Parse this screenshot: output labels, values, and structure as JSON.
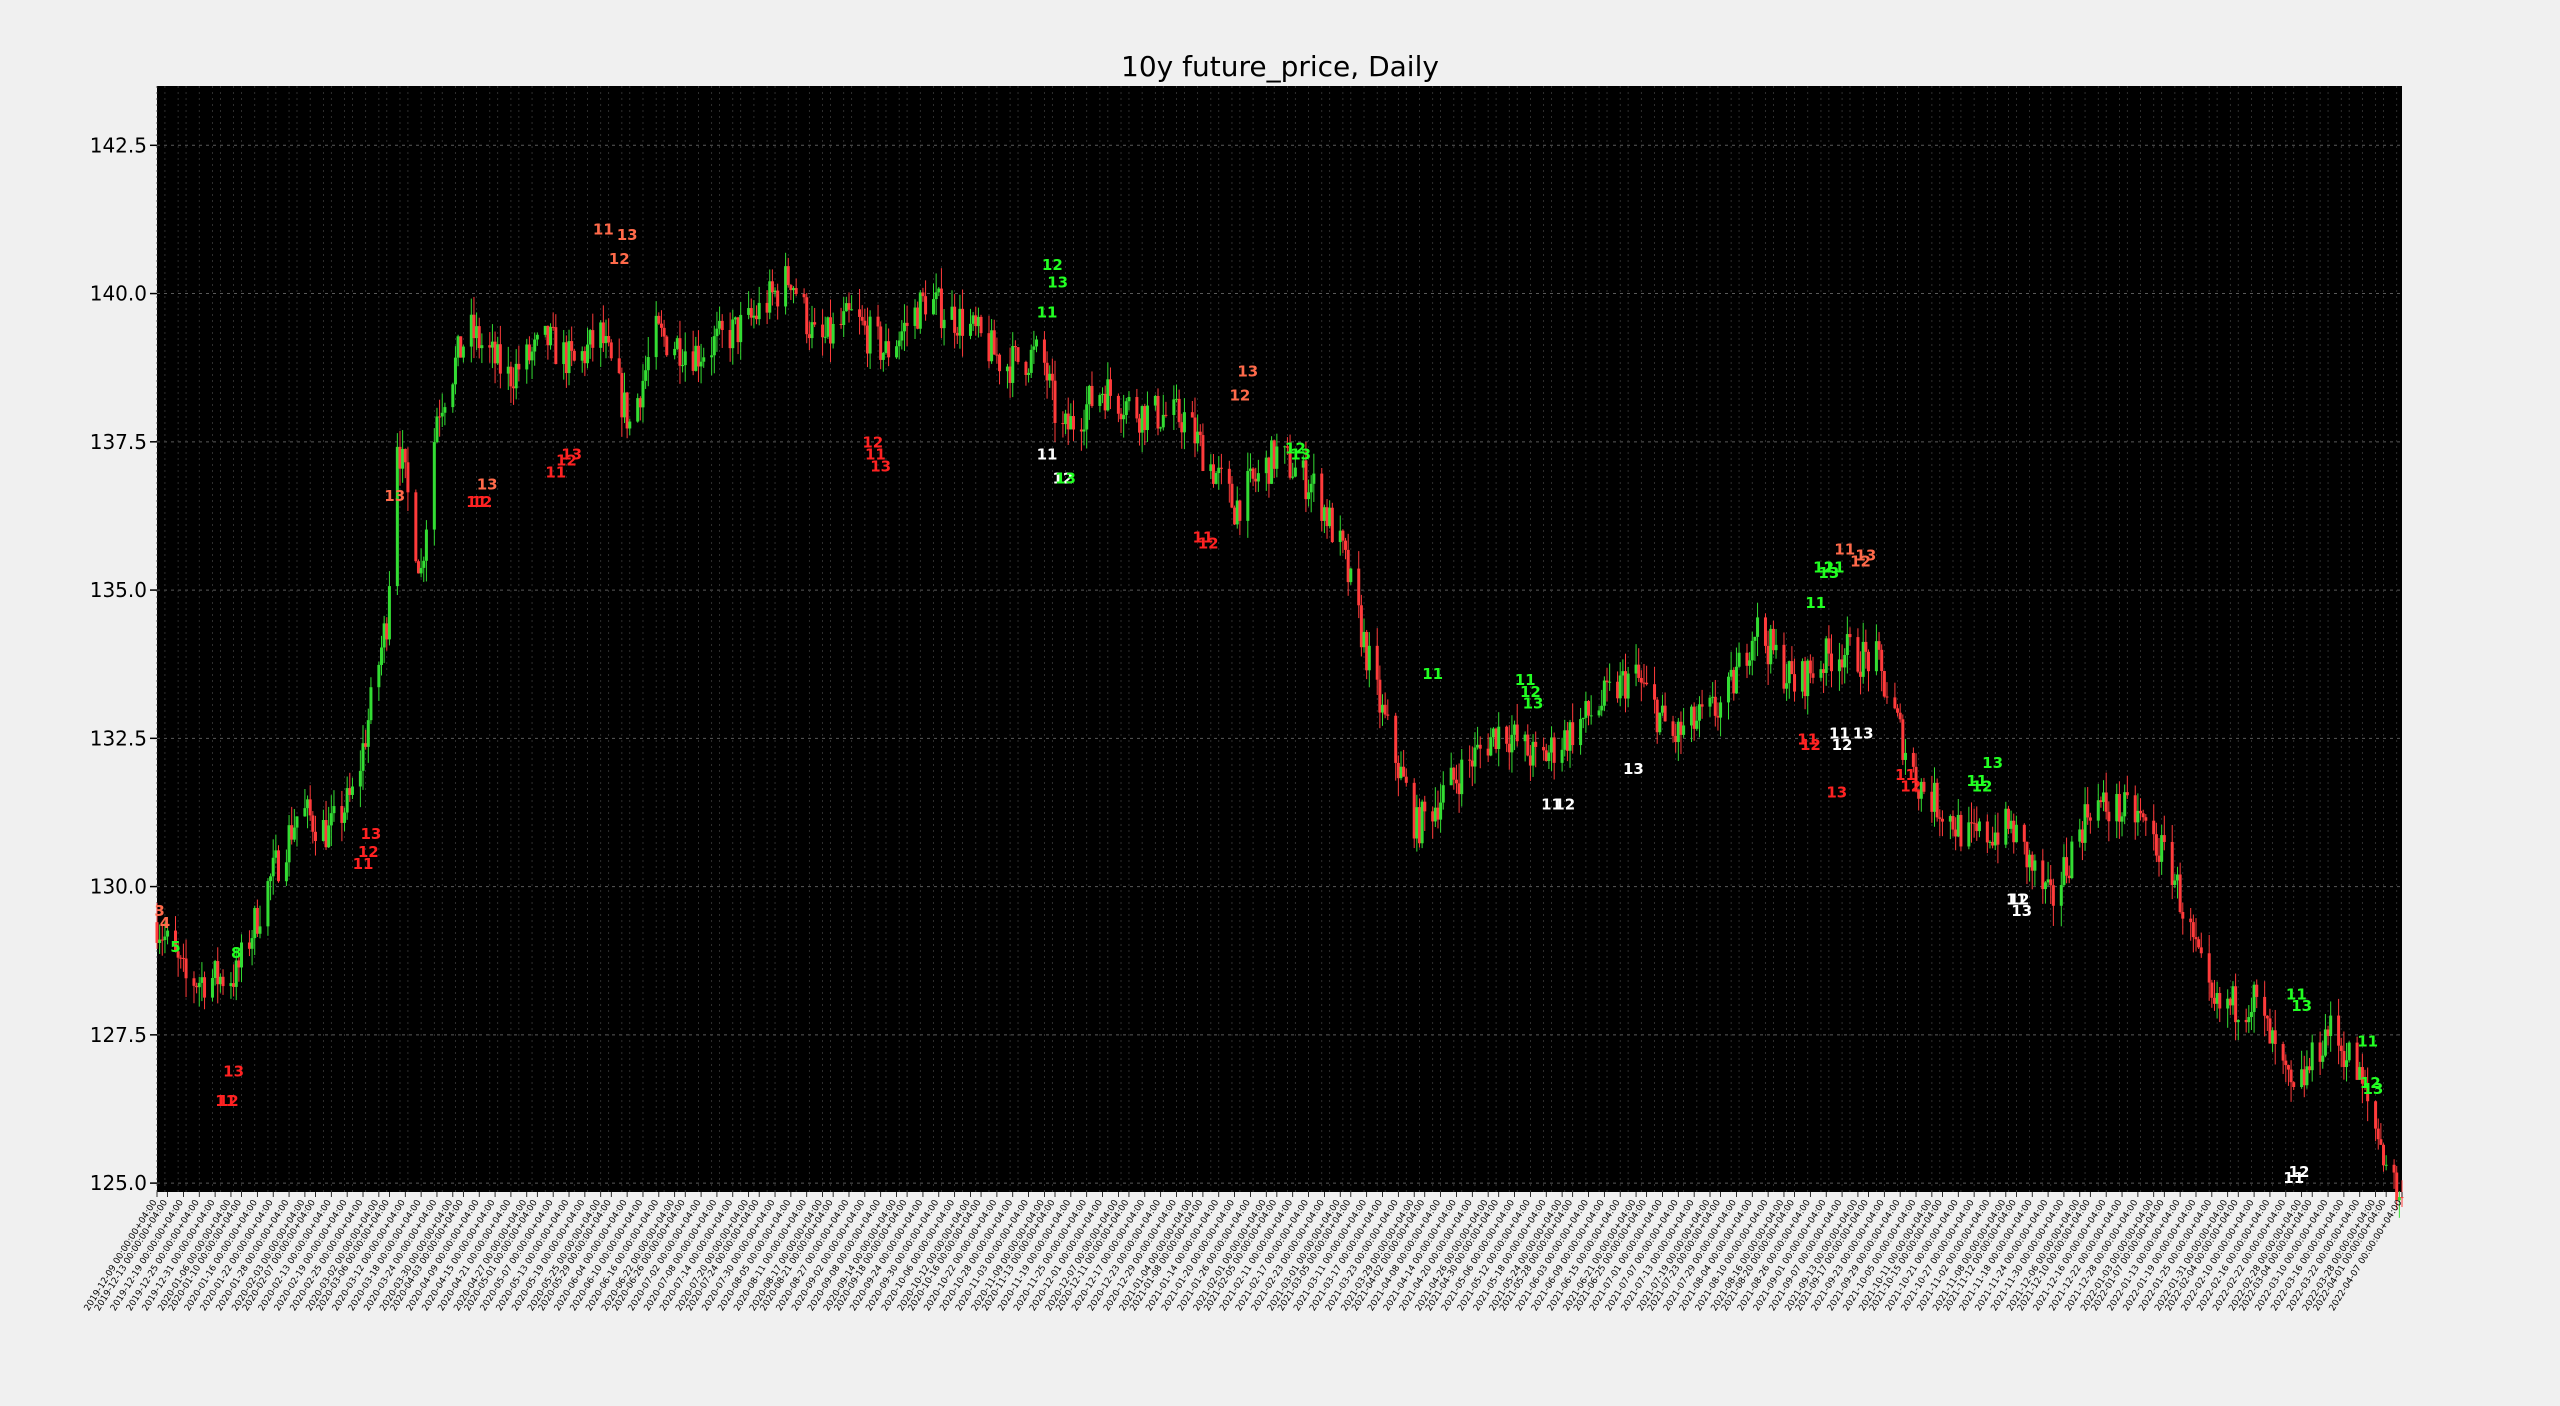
{
  "chart_data": {
    "type": "candlestick",
    "title": "10y future_price, Daily",
    "xlabel": "",
    "ylabel": "",
    "ylim": [
      124.85,
      143.5
    ],
    "yticks": [
      "125.0",
      "127.5",
      "130.0",
      "132.5",
      "135.0",
      "137.5",
      "140.0",
      "142.5"
    ],
    "x_range": [
      "2019-12-09",
      "2022-04-07"
    ],
    "background": "#000000",
    "grid": true,
    "colors": {
      "up": "#33dd33",
      "down": "#ff3b3b",
      "count_up": "#22ff22",
      "count_down": "#ff6a4a",
      "setup_up": "#ffffff",
      "setup_down": "#ff2222"
    },
    "anchors": [
      [
        "2019-12-09",
        129.4
      ],
      [
        "2019-12-20",
        128.4
      ],
      [
        "2020-01-08",
        128.5
      ],
      [
        "2020-01-20",
        130.0
      ],
      [
        "2020-02-01",
        131.3
      ],
      [
        "2020-02-12",
        130.9
      ],
      [
        "2020-02-22",
        131.6
      ],
      [
        "2020-03-05",
        134.5
      ],
      [
        "2020-03-09",
        137.6
      ],
      [
        "2020-03-18",
        135.3
      ],
      [
        "2020-03-24",
        138.0
      ],
      [
        "2020-04-05",
        139.4
      ],
      [
        "2020-04-20",
        138.6
      ],
      [
        "2020-05-05",
        139.2
      ],
      [
        "2020-05-15",
        138.8
      ],
      [
        "2020-05-25",
        139.3
      ],
      [
        "2020-06-05",
        137.8
      ],
      [
        "2020-06-15",
        139.3
      ],
      [
        "2020-07-01",
        139.0
      ],
      [
        "2020-07-20",
        139.5
      ],
      [
        "2020-08-05",
        140.3
      ],
      [
        "2020-08-15",
        139.1
      ],
      [
        "2020-08-28",
        139.6
      ],
      [
        "2020-09-10",
        139.0
      ],
      [
        "2020-09-25",
        139.9
      ],
      [
        "2020-10-10",
        139.5
      ],
      [
        "2020-10-25",
        138.8
      ],
      [
        "2020-11-08",
        139.0
      ],
      [
        "2020-11-15",
        137.6
      ],
      [
        "2020-12-01",
        138.4
      ],
      [
        "2020-12-15",
        138.0
      ],
      [
        "2021-01-01",
        137.9
      ],
      [
        "2021-01-20",
        136.4
      ],
      [
        "2021-02-05",
        137.3
      ],
      [
        "2021-02-20",
        136.7
      ],
      [
        "2021-03-02",
        135.6
      ],
      [
        "2021-03-15",
        133.2
      ],
      [
        "2021-03-30",
        131.0
      ],
      [
        "2021-04-15",
        131.9
      ],
      [
        "2021-05-01",
        132.7
      ],
      [
        "2021-05-15",
        132.1
      ],
      [
        "2021-06-01",
        132.8
      ],
      [
        "2021-06-20",
        133.6
      ],
      [
        "2021-07-05",
        132.5
      ],
      [
        "2021-07-25",
        133.1
      ],
      [
        "2021-08-05",
        134.4
      ],
      [
        "2021-08-20",
        133.4
      ],
      [
        "2021-09-05",
        134.0
      ],
      [
        "2021-09-20",
        133.8
      ],
      [
        "2021-10-05",
        131.8
      ],
      [
        "2021-10-25",
        130.8
      ],
      [
        "2021-11-10",
        131.0
      ],
      [
        "2021-11-25",
        129.7
      ],
      [
        "2021-12-10",
        131.4
      ],
      [
        "2021-12-28",
        131.2
      ],
      [
        "2022-01-10",
        130.3
      ],
      [
        "2022-01-25",
        127.9
      ],
      [
        "2022-02-10",
        128.1
      ],
      [
        "2022-02-25",
        126.4
      ],
      [
        "2022-03-10",
        127.6
      ],
      [
        "2022-03-20",
        127.0
      ],
      [
        "2022-04-07",
        124.6
      ]
    ],
    "visible_count_labels": [
      {
        "date": "2019-12-10",
        "y": 129.5,
        "text": "3",
        "color": "count_down"
      },
      {
        "date": "2019-12-12",
        "y": 129.3,
        "text": "4",
        "color": "count_down"
      },
      {
        "date": "2019-12-16",
        "y": 128.9,
        "text": "5",
        "color": "count_up"
      },
      {
        "date": "2020-01-08",
        "y": 128.8,
        "text": "8",
        "color": "count_up"
      },
      {
        "date": "2020-01-04",
        "y": 126.3,
        "text": "11",
        "color": "setup_down"
      },
      {
        "date": "2020-01-05",
        "y": 126.3,
        "text": "12",
        "color": "setup_down"
      },
      {
        "date": "2020-01-07",
        "y": 126.8,
        "text": "13",
        "color": "setup_down"
      },
      {
        "date": "2020-02-25",
        "y": 130.3,
        "text": "11",
        "color": "setup_down"
      },
      {
        "date": "2020-02-27",
        "y": 130.5,
        "text": "12",
        "color": "setup_down"
      },
      {
        "date": "2020-02-28",
        "y": 130.8,
        "text": "13",
        "color": "setup_down"
      },
      {
        "date": "2020-03-08",
        "y": 136.5,
        "text": "13",
        "color": "count_down"
      },
      {
        "date": "2020-04-08",
        "y": 136.4,
        "text": "11",
        "color": "setup_down"
      },
      {
        "date": "2020-04-10",
        "y": 136.4,
        "text": "12",
        "color": "setup_down"
      },
      {
        "date": "2020-04-12",
        "y": 136.7,
        "text": "13",
        "color": "count_down"
      },
      {
        "date": "2020-05-08",
        "y": 136.9,
        "text": "11",
        "color": "setup_down"
      },
      {
        "date": "2020-05-12",
        "y": 137.1,
        "text": "12",
        "color": "setup_down"
      },
      {
        "date": "2020-05-14",
        "y": 137.2,
        "text": "13",
        "color": "setup_down"
      },
      {
        "date": "2020-05-26",
        "y": 141.0,
        "text": "11",
        "color": "count_down"
      },
      {
        "date": "2020-06-01",
        "y": 140.5,
        "text": "12",
        "color": "count_down"
      },
      {
        "date": "2020-06-04",
        "y": 140.9,
        "text": "13",
        "color": "count_down"
      },
      {
        "date": "2020-09-05",
        "y": 137.4,
        "text": "12",
        "color": "setup_down"
      },
      {
        "date": "2020-09-06",
        "y": 137.2,
        "text": "11",
        "color": "setup_down"
      },
      {
        "date": "2020-09-08",
        "y": 137.0,
        "text": "13",
        "color": "setup_down"
      },
      {
        "date": "2020-11-10",
        "y": 137.2,
        "text": "11",
        "color": "setup_up"
      },
      {
        "date": "2020-11-16",
        "y": 136.8,
        "text": "12",
        "color": "setup_up"
      },
      {
        "date": "2020-11-17",
        "y": 136.8,
        "text": "13",
        "color": "count_up"
      },
      {
        "date": "2020-11-12",
        "y": 140.4,
        "text": "12",
        "color": "count_up"
      },
      {
        "date": "2020-11-14",
        "y": 140.1,
        "text": "13",
        "color": "count_up"
      },
      {
        "date": "2020-11-10",
        "y": 139.6,
        "text": "11",
        "color": "count_up"
      },
      {
        "date": "2021-01-22",
        "y": 138.2,
        "text": "12",
        "color": "count_down"
      },
      {
        "date": "2021-01-25",
        "y": 138.6,
        "text": "13",
        "color": "count_down"
      },
      {
        "date": "2021-01-08",
        "y": 135.8,
        "text": "11",
        "color": "setup_down"
      },
      {
        "date": "2021-01-10",
        "y": 135.7,
        "text": "12",
        "color": "setup_down"
      },
      {
        "date": "2021-02-12",
        "y": 137.3,
        "text": "12",
        "color": "count_up"
      },
      {
        "date": "2021-02-14",
        "y": 137.2,
        "text": "13",
        "color": "count_up"
      },
      {
        "date": "2021-04-05",
        "y": 133.5,
        "text": "11",
        "color": "count_up"
      },
      {
        "date": "2021-05-10",
        "y": 133.4,
        "text": "11",
        "color": "count_up"
      },
      {
        "date": "2021-05-12",
        "y": 133.2,
        "text": "12",
        "color": "count_up"
      },
      {
        "date": "2021-05-13",
        "y": 133.0,
        "text": "13",
        "color": "count_up"
      },
      {
        "date": "2021-05-20",
        "y": 131.3,
        "text": "11",
        "color": "setup_up"
      },
      {
        "date": "2021-05-25",
        "y": 131.3,
        "text": "12",
        "color": "setup_up"
      },
      {
        "date": "2021-06-20",
        "y": 131.9,
        "text": "13",
        "color": "setup_up"
      },
      {
        "date": "2021-08-25",
        "y": 132.4,
        "text": "11",
        "color": "setup_down"
      },
      {
        "date": "2021-08-26",
        "y": 132.3,
        "text": "12",
        "color": "setup_down"
      },
      {
        "date": "2021-09-05",
        "y": 131.5,
        "text": "13",
        "color": "setup_down"
      },
      {
        "date": "2021-09-04",
        "y": 135.3,
        "text": "11",
        "color": "count_up"
      },
      {
        "date": "2021-08-28",
        "y": 134.7,
        "text": "11",
        "color": "count_up"
      },
      {
        "date": "2021-08-31",
        "y": 135.3,
        "text": "12",
        "color": "count_up"
      },
      {
        "date": "2021-09-02",
        "y": 135.2,
        "text": "13",
        "color": "count_up"
      },
      {
        "date": "2021-09-08",
        "y": 135.6,
        "text": "11",
        "color": "count_down"
      },
      {
        "date": "2021-09-14",
        "y": 135.4,
        "text": "12",
        "color": "count_down"
      },
      {
        "date": "2021-09-16",
        "y": 135.5,
        "text": "13",
        "color": "count_down"
      },
      {
        "date": "2021-09-06",
        "y": 132.5,
        "text": "11",
        "color": "setup_up"
      },
      {
        "date": "2021-09-07",
        "y": 132.3,
        "text": "12",
        "color": "setup_up"
      },
      {
        "date": "2021-09-15",
        "y": 132.5,
        "text": "13",
        "color": "setup_up"
      },
      {
        "date": "2021-10-01",
        "y": 131.8,
        "text": "11",
        "color": "setup_down"
      },
      {
        "date": "2021-10-03",
        "y": 131.6,
        "text": "12",
        "color": "setup_down"
      },
      {
        "date": "2021-10-28",
        "y": 131.7,
        "text": "11",
        "color": "count_up"
      },
      {
        "date": "2021-10-30",
        "y": 131.6,
        "text": "12",
        "color": "count_up"
      },
      {
        "date": "2021-11-03",
        "y": 132.0,
        "text": "13",
        "color": "count_up"
      },
      {
        "date": "2021-11-12",
        "y": 129.7,
        "text": "11",
        "color": "setup_up"
      },
      {
        "date": "2021-11-13",
        "y": 129.7,
        "text": "12",
        "color": "setup_up"
      },
      {
        "date": "2021-11-14",
        "y": 129.5,
        "text": "13",
        "color": "setup_up"
      },
      {
        "date": "2022-02-26",
        "y": 128.1,
        "text": "11",
        "color": "count_up"
      },
      {
        "date": "2022-02-28",
        "y": 127.9,
        "text": "13",
        "color": "count_up"
      },
      {
        "date": "2022-02-25",
        "y": 125.0,
        "text": "11",
        "color": "setup_up"
      },
      {
        "date": "2022-02-27",
        "y": 125.1,
        "text": "12",
        "color": "setup_up"
      },
      {
        "date": "2022-03-25",
        "y": 127.3,
        "text": "11",
        "color": "count_up"
      },
      {
        "date": "2022-03-26",
        "y": 126.6,
        "text": "12",
        "color": "count_up"
      },
      {
        "date": "2022-03-27",
        "y": 126.5,
        "text": "13",
        "color": "count_up"
      }
    ]
  }
}
